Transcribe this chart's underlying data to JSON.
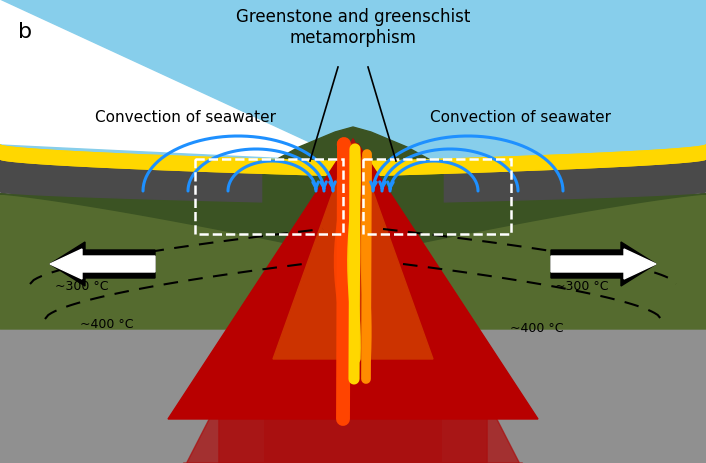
{
  "title": "b",
  "label_greenstone": "Greenstone and greenschist\nmetamorphism",
  "label_convection_left": "Convection of seawater",
  "label_convection_right": "Convection of seawater",
  "label_300_left": "~300 °C",
  "label_400_left": "~400 °C",
  "label_300_right": "~300 °C",
  "label_400_right": "~400 °C",
  "color_sky": "#87CEEB",
  "color_yellow_band": "#FFD700",
  "color_dark_layer": "#4A4A4A",
  "color_green_main": "#556B2F",
  "color_green_dark": "#3B5323",
  "color_green_mid": "#6B8E23",
  "color_red_hot": "#CC0000",
  "color_orange_hot": "#FF6600",
  "color_yellow_hot": "#FFD700",
  "color_gray_bottom": "#909090",
  "color_blue_convection": "#1E90FF",
  "color_white": "#FFFFFF",
  "color_black": "#000000",
  "color_dark_red_glow": "#8B1A1A",
  "xlim": [
    0,
    706
  ],
  "ylim": [
    0,
    464
  ]
}
